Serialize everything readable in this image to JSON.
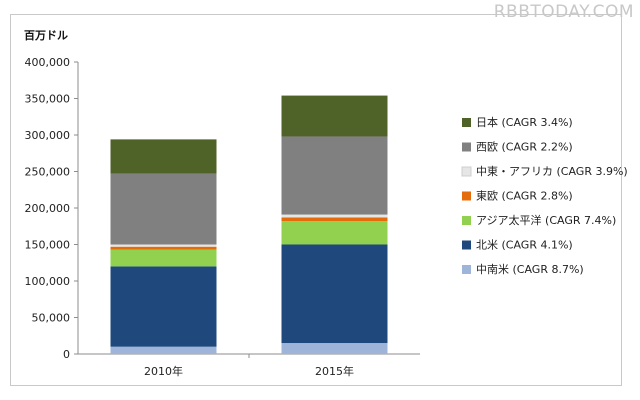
{
  "watermark": "RBBTODAY.COM",
  "chart_data": {
    "type": "bar",
    "stacked": true,
    "unit_label": "百万ドル",
    "categories": [
      "2010年",
      "2015年"
    ],
    "ylim": [
      0,
      400000
    ],
    "yticks": [
      "0",
      "50,000",
      "100,000",
      "150,000",
      "200,000",
      "250,000",
      "300,000",
      "350,000",
      "400,000"
    ],
    "grid": false,
    "legend_position": "right",
    "series": [
      {
        "name": "中南米 (CAGR 8.7%)",
        "color": "#9fb4d9",
        "values": [
          10000,
          15000
        ]
      },
      {
        "name": "北米 (CAGR 4.1%)",
        "color": "#1f497d",
        "values": [
          110000,
          135000
        ]
      },
      {
        "name": "アジア太平洋 (CAGR 7.4%)",
        "color": "#92d050",
        "values": [
          23000,
          32000
        ]
      },
      {
        "name": "東欧 (CAGR 2.8%)",
        "color": "#e46c0a",
        "values": [
          4000,
          5000
        ]
      },
      {
        "name": "中東・アフリカ (CAGR 3.9%)",
        "color": "#e6e6e6",
        "values": [
          3000,
          4000
        ]
      },
      {
        "name": "西欧 (CAGR 2.2%)",
        "color": "#808080",
        "values": [
          97000,
          107000
        ]
      },
      {
        "name": "日本 (CAGR 3.4%)",
        "color": "#4f6228",
        "values": [
          47000,
          56000
        ]
      }
    ]
  }
}
